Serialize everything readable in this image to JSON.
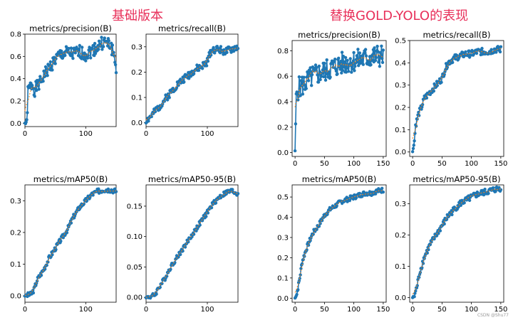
{
  "titles": {
    "left": "基础版本",
    "right": "替换GOLD-YOLO的表现"
  },
  "watermark": "CSDN @Shu77",
  "colors": {
    "marker": "#1f77b4",
    "smooth": "#ff7f0e",
    "title": "#e8305a"
  },
  "chart_data": [
    {
      "type": "line",
      "group": "left",
      "title": "metrics/precision(B)",
      "xlim": [
        0,
        150
      ],
      "ylim": [
        -0.03,
        0.8
      ],
      "xticks": [
        0,
        100
      ],
      "yticks": [
        0.0,
        0.2,
        0.4,
        0.6,
        0.8
      ],
      "anchors": [
        [
          0,
          0
        ],
        [
          3,
          0
        ],
        [
          5,
          0.28
        ],
        [
          8,
          0.32
        ],
        [
          12,
          0.35
        ],
        [
          16,
          0.3
        ],
        [
          20,
          0.33
        ],
        [
          25,
          0.36
        ],
        [
          30,
          0.42
        ],
        [
          40,
          0.5
        ],
        [
          50,
          0.57
        ],
        [
          60,
          0.62
        ],
        [
          70,
          0.63
        ],
        [
          80,
          0.62
        ],
        [
          90,
          0.64
        ],
        [
          100,
          0.62
        ],
        [
          110,
          0.65
        ],
        [
          120,
          0.69
        ],
        [
          130,
          0.73
        ],
        [
          140,
          0.7
        ],
        [
          145,
          0.65
        ],
        [
          150,
          0.5
        ]
      ],
      "noise": 0.06,
      "seed": 1
    },
    {
      "type": "line",
      "group": "left",
      "title": "metrics/recall(B)",
      "xlim": [
        0,
        150
      ],
      "ylim": [
        -0.015,
        0.35
      ],
      "xticks": [
        0,
        100
      ],
      "yticks": [
        0.0,
        0.1,
        0.2,
        0.3
      ],
      "anchors": [
        [
          0,
          0
        ],
        [
          5,
          0.02
        ],
        [
          10,
          0.03
        ],
        [
          20,
          0.06
        ],
        [
          30,
          0.09
        ],
        [
          40,
          0.12
        ],
        [
          50,
          0.15
        ],
        [
          60,
          0.17
        ],
        [
          70,
          0.19
        ],
        [
          80,
          0.21
        ],
        [
          90,
          0.22
        ],
        [
          100,
          0.24
        ],
        [
          105,
          0.28
        ],
        [
          110,
          0.29
        ],
        [
          120,
          0.29
        ],
        [
          130,
          0.28
        ],
        [
          140,
          0.29
        ],
        [
          150,
          0.3
        ]
      ],
      "noise": 0.015,
      "seed": 2
    },
    {
      "type": "line",
      "group": "left",
      "title": "metrics/mAP50(B)",
      "xlim": [
        0,
        150
      ],
      "ylim": [
        -0.02,
        0.35
      ],
      "xticks": [
        0,
        100
      ],
      "yticks": [
        0.0,
        0.1,
        0.2,
        0.3
      ],
      "anchors": [
        [
          0,
          0
        ],
        [
          10,
          0.005
        ],
        [
          15,
          0.02
        ],
        [
          20,
          0.05
        ],
        [
          30,
          0.08
        ],
        [
          40,
          0.12
        ],
        [
          50,
          0.15
        ],
        [
          60,
          0.18
        ],
        [
          70,
          0.21
        ],
        [
          80,
          0.25
        ],
        [
          90,
          0.28
        ],
        [
          100,
          0.3
        ],
        [
          110,
          0.32
        ],
        [
          120,
          0.33
        ],
        [
          130,
          0.335
        ],
        [
          140,
          0.335
        ],
        [
          150,
          0.33
        ]
      ],
      "noise": 0.008,
      "seed": 3
    },
    {
      "type": "line",
      "group": "left",
      "title": "metrics/mAP50-95(B)",
      "xlim": [
        0,
        150
      ],
      "ylim": [
        -0.008,
        0.185
      ],
      "xticks": [
        0,
        100
      ],
      "yticks": [
        0.0,
        0.05,
        0.1,
        0.15
      ],
      "anchors": [
        [
          0,
          0
        ],
        [
          10,
          0.002
        ],
        [
          15,
          0.005
        ],
        [
          20,
          0.015
        ],
        [
          30,
          0.03
        ],
        [
          40,
          0.05
        ],
        [
          50,
          0.065
        ],
        [
          60,
          0.08
        ],
        [
          70,
          0.095
        ],
        [
          80,
          0.11
        ],
        [
          90,
          0.125
        ],
        [
          100,
          0.14
        ],
        [
          110,
          0.155
        ],
        [
          120,
          0.165
        ],
        [
          130,
          0.172
        ],
        [
          140,
          0.175
        ],
        [
          150,
          0.17
        ]
      ],
      "noise": 0.004,
      "seed": 4
    },
    {
      "type": "line",
      "group": "right",
      "title": "metrics/precision(B)",
      "xlim": [
        -5,
        155
      ],
      "ylim": [
        -0.03,
        0.88
      ],
      "xticks": [
        0,
        50,
        100,
        150
      ],
      "yticks": [
        0.0,
        0.2,
        0.4,
        0.6,
        0.8
      ],
      "anchors": [
        [
          0,
          0
        ],
        [
          2,
          0.45
        ],
        [
          5,
          0.5
        ],
        [
          10,
          0.52
        ],
        [
          20,
          0.56
        ],
        [
          30,
          0.6
        ],
        [
          40,
          0.62
        ],
        [
          50,
          0.64
        ],
        [
          60,
          0.66
        ],
        [
          70,
          0.68
        ],
        [
          80,
          0.7
        ],
        [
          90,
          0.71
        ],
        [
          100,
          0.72
        ],
        [
          110,
          0.73
        ],
        [
          120,
          0.74
        ],
        [
          130,
          0.75
        ],
        [
          140,
          0.76
        ],
        [
          150,
          0.76
        ]
      ],
      "noise": 0.09,
      "seed": 5
    },
    {
      "type": "line",
      "group": "right",
      "title": "metrics/recall(B)",
      "xlim": [
        -5,
        155
      ],
      "ylim": [
        -0.02,
        0.5
      ],
      "xticks": [
        0,
        50,
        100,
        150
      ],
      "yticks": [
        0.0,
        0.1,
        0.2,
        0.3,
        0.4,
        0.5
      ],
      "anchors": [
        [
          0,
          0
        ],
        [
          3,
          0.05
        ],
        [
          5,
          0.12
        ],
        [
          10,
          0.17
        ],
        [
          15,
          0.2
        ],
        [
          20,
          0.24
        ],
        [
          30,
          0.27
        ],
        [
          40,
          0.3
        ],
        [
          50,
          0.33
        ],
        [
          55,
          0.37
        ],
        [
          60,
          0.4
        ],
        [
          70,
          0.42
        ],
        [
          80,
          0.43
        ],
        [
          90,
          0.44
        ],
        [
          100,
          0.44
        ],
        [
          110,
          0.45
        ],
        [
          120,
          0.45
        ],
        [
          130,
          0.45
        ],
        [
          140,
          0.46
        ],
        [
          150,
          0.46
        ]
      ],
      "noise": 0.015,
      "seed": 6
    },
    {
      "type": "line",
      "group": "right",
      "title": "metrics/mAP50(B)",
      "xlim": [
        -5,
        155
      ],
      "ylim": [
        -0.02,
        0.56
      ],
      "xticks": [
        0,
        50,
        100,
        150
      ],
      "yticks": [
        0.0,
        0.1,
        0.2,
        0.3,
        0.4,
        0.5
      ],
      "anchors": [
        [
          0,
          0
        ],
        [
          3,
          0.02
        ],
        [
          8,
          0.1
        ],
        [
          12,
          0.18
        ],
        [
          20,
          0.25
        ],
        [
          30,
          0.32
        ],
        [
          40,
          0.36
        ],
        [
          50,
          0.41
        ],
        [
          60,
          0.44
        ],
        [
          70,
          0.46
        ],
        [
          80,
          0.48
        ],
        [
          90,
          0.49
        ],
        [
          100,
          0.5
        ],
        [
          110,
          0.51
        ],
        [
          120,
          0.52
        ],
        [
          130,
          0.52
        ],
        [
          140,
          0.53
        ],
        [
          150,
          0.535
        ]
      ],
      "noise": 0.012,
      "seed": 7
    },
    {
      "type": "line",
      "group": "right",
      "title": "metrics/mAP50-95(B)",
      "xlim": [
        -5,
        155
      ],
      "ylim": [
        -0.015,
        0.36
      ],
      "xticks": [
        0,
        50,
        100,
        150
      ],
      "yticks": [
        0.0,
        0.1,
        0.2,
        0.3
      ],
      "anchors": [
        [
          0,
          0
        ],
        [
          3,
          0.005
        ],
        [
          8,
          0.04
        ],
        [
          12,
          0.08
        ],
        [
          20,
          0.13
        ],
        [
          30,
          0.17
        ],
        [
          40,
          0.2
        ],
        [
          50,
          0.23
        ],
        [
          60,
          0.26
        ],
        [
          70,
          0.28
        ],
        [
          80,
          0.3
        ],
        [
          90,
          0.31
        ],
        [
          100,
          0.32
        ],
        [
          110,
          0.33
        ],
        [
          120,
          0.335
        ],
        [
          130,
          0.34
        ],
        [
          140,
          0.345
        ],
        [
          150,
          0.35
        ]
      ],
      "noise": 0.01,
      "seed": 8
    }
  ]
}
